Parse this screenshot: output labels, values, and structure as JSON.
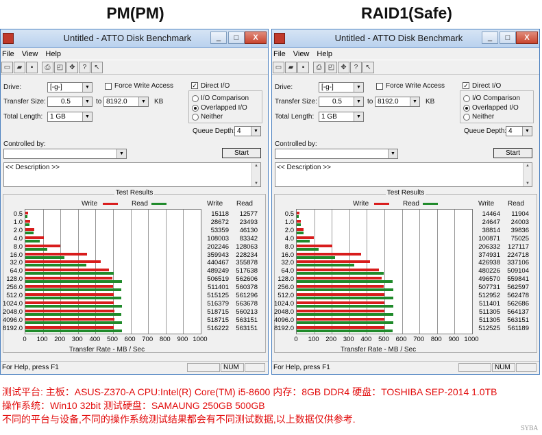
{
  "panels": [
    {
      "heading": "PM(PM)",
      "title": "Untitled - ATTO Disk Benchmark",
      "window_buttons": {
        "minimize": "_",
        "maximize": "□",
        "close": "X"
      },
      "menu": [
        "File",
        "View",
        "Help"
      ],
      "labels": {
        "drive": "Drive:",
        "transfer_size": "Transfer Size:",
        "to": "to",
        "kb": "KB",
        "total_length": "Total Length:",
        "force_write": "Force Write Access",
        "direct_io": "Direct I/O",
        "io_comparison": "I/O Comparison",
        "overlapped_io": "Overlapped I/O",
        "neither": "Neither",
        "queue_depth": "Queue Depth:",
        "controlled_by": "Controlled by:",
        "start": "Start",
        "description": "<< Description >>",
        "test_results": "Test Results",
        "legend_write": "Write",
        "legend_read": "Read",
        "col_write": "Write",
        "col_read": "Read",
        "x_axis": "Transfer Rate - MB / Sec"
      },
      "values": {
        "drive": "[-g-]",
        "transfer_from": "0.5",
        "transfer_to": "8192.0",
        "total_length": "1 GB",
        "queue_depth": "4"
      },
      "status": {
        "help": "For Help, press F1",
        "num": "NUM"
      },
      "chart_data": {
        "type": "bar",
        "orientation": "horizontal",
        "categories": [
          "0.5",
          "1.0",
          "2.0",
          "4.0",
          "8.0",
          "16.0",
          "32.0",
          "64.0",
          "128.0",
          "256.0",
          "512.0",
          "1024.0",
          "2048.0",
          "4096.0",
          "8192.0"
        ],
        "x_ticks": [
          "0",
          "100",
          "200",
          "300",
          "400",
          "500",
          "600",
          "700",
          "800",
          "900",
          "1000"
        ],
        "xlim": [
          0,
          1000
        ],
        "series": [
          {
            "name": "Write",
            "color": "#d81c1c",
            "values": [
              15118,
              28672,
              53359,
              108003,
              202246,
              359943,
              440467,
              489249,
              506519,
              511401,
              515125,
              516379,
              518715,
              518715,
              516222
            ]
          },
          {
            "name": "Read",
            "color": "#1f8a2a",
            "values": [
              12577,
              23493,
              46130,
              83342,
              128063,
              228234,
              355878,
              517638,
              562606,
              560378,
              561296,
              563678,
              560213,
              563151,
              563151
            ]
          }
        ]
      }
    },
    {
      "heading": "RAID1(Safe)",
      "title": "Untitled - ATTO Disk Benchmark",
      "window_buttons": {
        "minimize": "_",
        "maximize": "□",
        "close": "X"
      },
      "menu": [
        "File",
        "View",
        "Help"
      ],
      "labels": {
        "drive": "Drive:",
        "transfer_size": "Transfer Size:",
        "to": "to",
        "kb": "KB",
        "total_length": "Total Length:",
        "force_write": "Force Write Access",
        "direct_io": "Direct I/O",
        "io_comparison": "I/O Comparison",
        "overlapped_io": "Overlapped I/O",
        "neither": "Neither",
        "queue_depth": "Queue Depth:",
        "controlled_by": "Controlled by:",
        "start": "Start",
        "description": "<< Description >>",
        "test_results": "Test Results",
        "legend_write": "Write",
        "legend_read": "Read",
        "col_write": "Write",
        "col_read": "Read",
        "x_axis": "Transfer Rate - MB / Sec"
      },
      "values": {
        "drive": "[-g-]",
        "transfer_from": "0.5",
        "transfer_to": "8192.0",
        "total_length": "1 GB",
        "queue_depth": "4"
      },
      "status": {
        "help": "For Help, press F1",
        "num": "NUM"
      },
      "chart_data": {
        "type": "bar",
        "orientation": "horizontal",
        "categories": [
          "0.5",
          "1.0",
          "2.0",
          "4.0",
          "8.0",
          "16.0",
          "32.0",
          "64.0",
          "128.0",
          "256.0",
          "512.0",
          "1024.0",
          "2048.0",
          "4096.0",
          "8192.0"
        ],
        "x_ticks": [
          "0",
          "100",
          "200",
          "300",
          "400",
          "500",
          "600",
          "700",
          "800",
          "900",
          "1000"
        ],
        "xlim": [
          0,
          1000
        ],
        "series": [
          {
            "name": "Write",
            "color": "#d81c1c",
            "values": [
              14464,
              24647,
              38814,
              100871,
              206332,
              374931,
              426938,
              480226,
              496570,
              507731,
              512952,
              511401,
              511305,
              511305,
              512525
            ]
          },
          {
            "name": "Read",
            "color": "#1f8a2a",
            "values": [
              11904,
              24003,
              39836,
              75025,
              127117,
              224718,
              337106,
              509104,
              559841,
              562597,
              562478,
              562686,
              564137,
              563151,
              561189
            ]
          }
        ]
      }
    }
  ],
  "notes": [
    "测试平台: 主板：ASUS-Z370-A  CPU:Intel(R) Core(TM) i5-8600 内存：8GB DDR4 硬盘：TOSHIBA SEP-2014 1.0TB",
    "操作系统：Win10 32bit  测试硬盘：SAMAUNG 250GB 500GB",
    "不同的平台与设备,不同的操作系统测试结果都会有不同测试数据,以上数据仅供参考."
  ],
  "watermark": "SYBA"
}
